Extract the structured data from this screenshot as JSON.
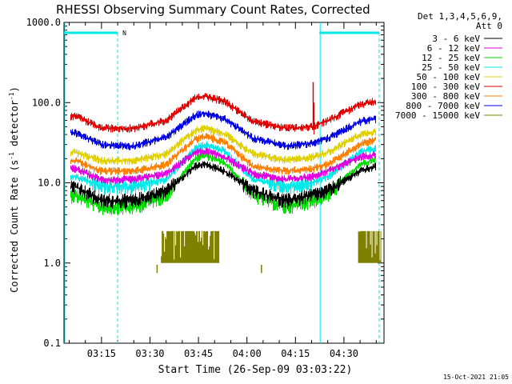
{
  "chart_data": {
    "type": "line",
    "title": "RHESSI Observing Summary Count Rates, Corrected",
    "xlabel": "Start Time (26-Sep-09 03:03:22)",
    "ylabel_main": "Corrected Count Rate (s",
    "ylabel_sup1": "-1",
    "ylabel_mid": " detector",
    "ylabel_sup2": "-1",
    "ylabel_end": ")",
    "y_scale": "log",
    "ylim": [
      0.1,
      1000
    ],
    "xlim_minutes": [
      183.4,
      282.4
    ],
    "y_ticks": [
      {
        "value": 1000,
        "label": "1000.0"
      },
      {
        "value": 100,
        "label": "100.0"
      },
      {
        "value": 10,
        "label": "10.0"
      },
      {
        "value": 1,
        "label": "1.0"
      },
      {
        "value": 0.1,
        "label": "0.1"
      }
    ],
    "x_ticks": [
      {
        "minute": 195,
        "label": "03:15"
      },
      {
        "minute": 210,
        "label": "03:30"
      },
      {
        "minute": 225,
        "label": "03:45"
      },
      {
        "minute": 240,
        "label": "04:00"
      },
      {
        "minute": 255,
        "label": "04:15"
      },
      {
        "minute": 270,
        "label": "04:30"
      }
    ],
    "legend_header": [
      "Det 1,3,4,5,6,9,",
      "Att 0"
    ],
    "legend_placement": "right",
    "night_marker_label": "N",
    "night_intervals_minutes": [
      [
        183.4,
        200.0
      ],
      [
        262.4,
        280.9
      ]
    ],
    "saa_lines_minutes": [
      183.4,
      262.4
    ],
    "dashed_lines_minutes": [
      200.0,
      280.9
    ],
    "series": [
      {
        "name": "3 - 6 keV",
        "color": "#000000",
        "times": [
          187,
          195,
          205,
          215,
          224,
          227,
          233,
          242,
          252,
          260,
          265,
          275,
          280
        ],
        "values": [
          9,
          6,
          6,
          8,
          16,
          17,
          14,
          8,
          6,
          7,
          8,
          14,
          16
        ]
      },
      {
        "name": "6 - 12 keV",
        "color": "#e000e0",
        "times": [
          187,
          195,
          205,
          215,
          224,
          227,
          233,
          242,
          252,
          260,
          265,
          275,
          280
        ],
        "values": [
          15,
          11,
          11,
          13,
          24,
          25,
          21,
          13,
          11,
          12,
          14,
          21,
          23
        ]
      },
      {
        "name": "12 - 25 keV",
        "color": "#00e000",
        "times": [
          187,
          195,
          205,
          215,
          224,
          227,
          233,
          242,
          252,
          260,
          265,
          275,
          280
        ],
        "values": [
          7,
          5,
          5,
          7,
          20,
          22,
          18,
          7,
          5,
          6,
          7,
          17,
          20
        ]
      },
      {
        "name": "25 - 50 keV",
        "color": "#00e8e8",
        "times": [
          187,
          195,
          205,
          215,
          224,
          227,
          233,
          242,
          252,
          260,
          265,
          275,
          280
        ],
        "values": [
          12,
          9,
          9,
          11,
          27,
          30,
          25,
          11,
          9,
          10,
          12,
          24,
          27
        ]
      },
      {
        "name": "50 - 100 keV",
        "color": "#e0d000",
        "times": [
          187,
          195,
          205,
          215,
          224,
          227,
          233,
          242,
          252,
          260,
          265,
          275,
          280
        ],
        "values": [
          24,
          19,
          19,
          23,
          45,
          48,
          41,
          23,
          19,
          21,
          24,
          40,
          44
        ]
      },
      {
        "name": "100 - 300 keV",
        "color": "#e00000",
        "times": [
          187,
          195,
          205,
          215,
          224,
          227,
          233,
          242,
          252,
          260,
          265,
          275,
          280
        ],
        "values": [
          68,
          48,
          48,
          60,
          115,
          120,
          105,
          58,
          48,
          50,
          60,
          95,
          105
        ]
      },
      {
        "name": "300 - 800 keV",
        "color": "#ff8000",
        "times": [
          187,
          195,
          205,
          215,
          224,
          227,
          233,
          242,
          252,
          260,
          265,
          275,
          280
        ],
        "values": [
          19,
          14,
          14,
          17,
          35,
          38,
          32,
          16,
          14,
          15,
          17,
          30,
          35
        ]
      },
      {
        "name": "800 - 7000 keV",
        "color": "#0000e0",
        "times": [
          187,
          195,
          205,
          215,
          224,
          227,
          233,
          242,
          252,
          260,
          265,
          275,
          280
        ],
        "values": [
          42,
          30,
          29,
          37,
          70,
          73,
          63,
          36,
          29,
          31,
          36,
          58,
          63
        ]
      },
      {
        "name": "7000 - 15000 keV",
        "color": "#808000",
        "times": [
          211,
          222,
          233,
          275,
          280
        ],
        "values": [
          1.5,
          2.5,
          1.5,
          1.5,
          2.0
        ]
      }
    ],
    "spike": {
      "minute": 260.5,
      "value": 180
    },
    "footer_date": "15-Oct-2021 21:05"
  }
}
